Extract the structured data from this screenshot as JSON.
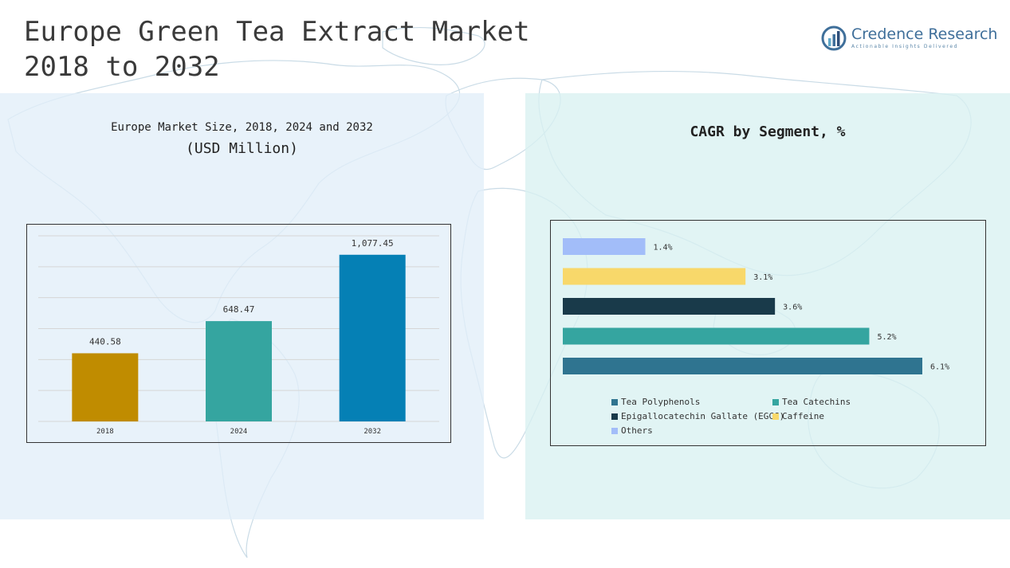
{
  "header": {
    "title_line1": "Europe Green Tea Extract Market",
    "title_line2": "2018 to 2032",
    "brand_name": "Credence Research",
    "brand_tagline": "Actionable Insights Delivered",
    "brand_color": "#3f6f9a"
  },
  "left_panel": {
    "subtitle": "Europe Market Size, 2018, 2024 and 2032",
    "unit": "(USD Million)"
  },
  "right_panel": {
    "title": "CAGR by Segment, %"
  },
  "chart_data": [
    {
      "type": "bar",
      "categories": [
        "2018",
        "2024",
        "2032"
      ],
      "values": [
        440.58,
        648.47,
        1077.45
      ],
      "value_labels": [
        "440.58",
        "648.47",
        "1,077.45"
      ],
      "colors": [
        "#c08c00",
        "#35a5a0",
        "#0580b5"
      ],
      "ylim": [
        0,
        1200
      ],
      "grid": true
    },
    {
      "type": "bar",
      "orientation": "horizontal",
      "categories": [
        "Others",
        "Caffeine",
        "Epigallocatechin Gallate (EGCG)",
        "Tea Catechins",
        "Tea Polyphenols"
      ],
      "values": [
        1.4,
        3.1,
        3.6,
        5.2,
        6.1
      ],
      "value_labels": [
        "1.4%",
        "3.1%",
        "3.6%",
        "5.2%",
        "6.1%"
      ],
      "colors": [
        "#a2bdf9",
        "#f8d86a",
        "#193a4a",
        "#35a5a0",
        "#2f7490"
      ],
      "xlim": [
        0,
        6.5
      ],
      "legend": {
        "position": "bottom",
        "items": [
          {
            "label": "Tea Polyphenols",
            "color": "#2f7490"
          },
          {
            "label": "Tea Catechins",
            "color": "#35a5a0"
          },
          {
            "label": "Epigallocatechin Gallate (EGCG)",
            "color": "#193a4a"
          },
          {
            "label": "Caffeine",
            "color": "#f8d86a"
          },
          {
            "label": "Others",
            "color": "#a2bdf9"
          }
        ]
      }
    }
  ]
}
